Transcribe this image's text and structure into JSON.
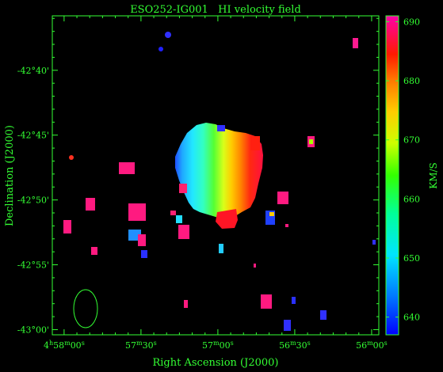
{
  "title": "ESO252-IG001   HI velocity field",
  "x_axis": {
    "label": "Right Ascension (J2000)",
    "ticks": [
      {
        "ra_seconds": 300,
        "h": "4",
        "m": "58",
        "s": "00"
      },
      {
        "ra_seconds": 270,
        "h": "",
        "m": "57",
        "s": "30"
      },
      {
        "ra_seconds": 240,
        "h": "",
        "m": "57",
        "s": "00"
      },
      {
        "ra_seconds": 210,
        "h": "",
        "m": "56",
        "s": "30"
      },
      {
        "ra_seconds": 180,
        "h": "",
        "m": "56",
        "s": "00"
      }
    ],
    "range": [
      304.6,
      177.2
    ]
  },
  "y_axis": {
    "label": "Declination (J2000)",
    "ticks": [
      {
        "dec_arcmin": -40,
        "label": "-42°40'"
      },
      {
        "dec_arcmin": -45,
        "label": "-42°45'"
      },
      {
        "dec_arcmin": -50,
        "label": "-42°50'"
      },
      {
        "dec_arcmin": -55,
        "label": "-42°55'"
      },
      {
        "dec_arcmin": -60,
        "label": "-43°00'"
      }
    ],
    "range": [
      -35.8,
      -60.4
    ]
  },
  "colorbar": {
    "label": "KM/S",
    "min": 637,
    "max": 691,
    "ticks": [
      640,
      650,
      660,
      670,
      680,
      690
    ]
  },
  "colors": {
    "axes": "#33ff33",
    "background": "#000000"
  }
}
